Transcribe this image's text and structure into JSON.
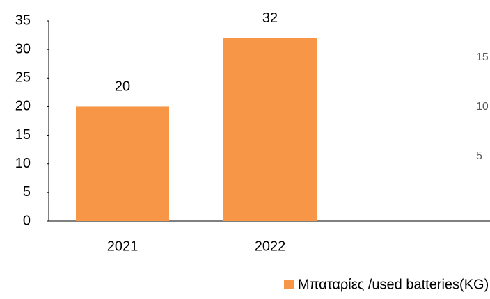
{
  "chart_data": {
    "type": "bar",
    "categories": [
      "2021",
      "2022"
    ],
    "series": [
      {
        "name": "Μπαταρίες /used batteries(KG)",
        "color": "#f79646",
        "values": [
          20,
          32
        ]
      }
    ],
    "ylim": [
      0,
      35
    ],
    "yticks": [
      0,
      5,
      10,
      15,
      20,
      25,
      30,
      35
    ],
    "y2lim": [
      0,
      20
    ],
    "y2ticks": [
      5,
      10,
      15
    ],
    "legend": "bottom"
  }
}
